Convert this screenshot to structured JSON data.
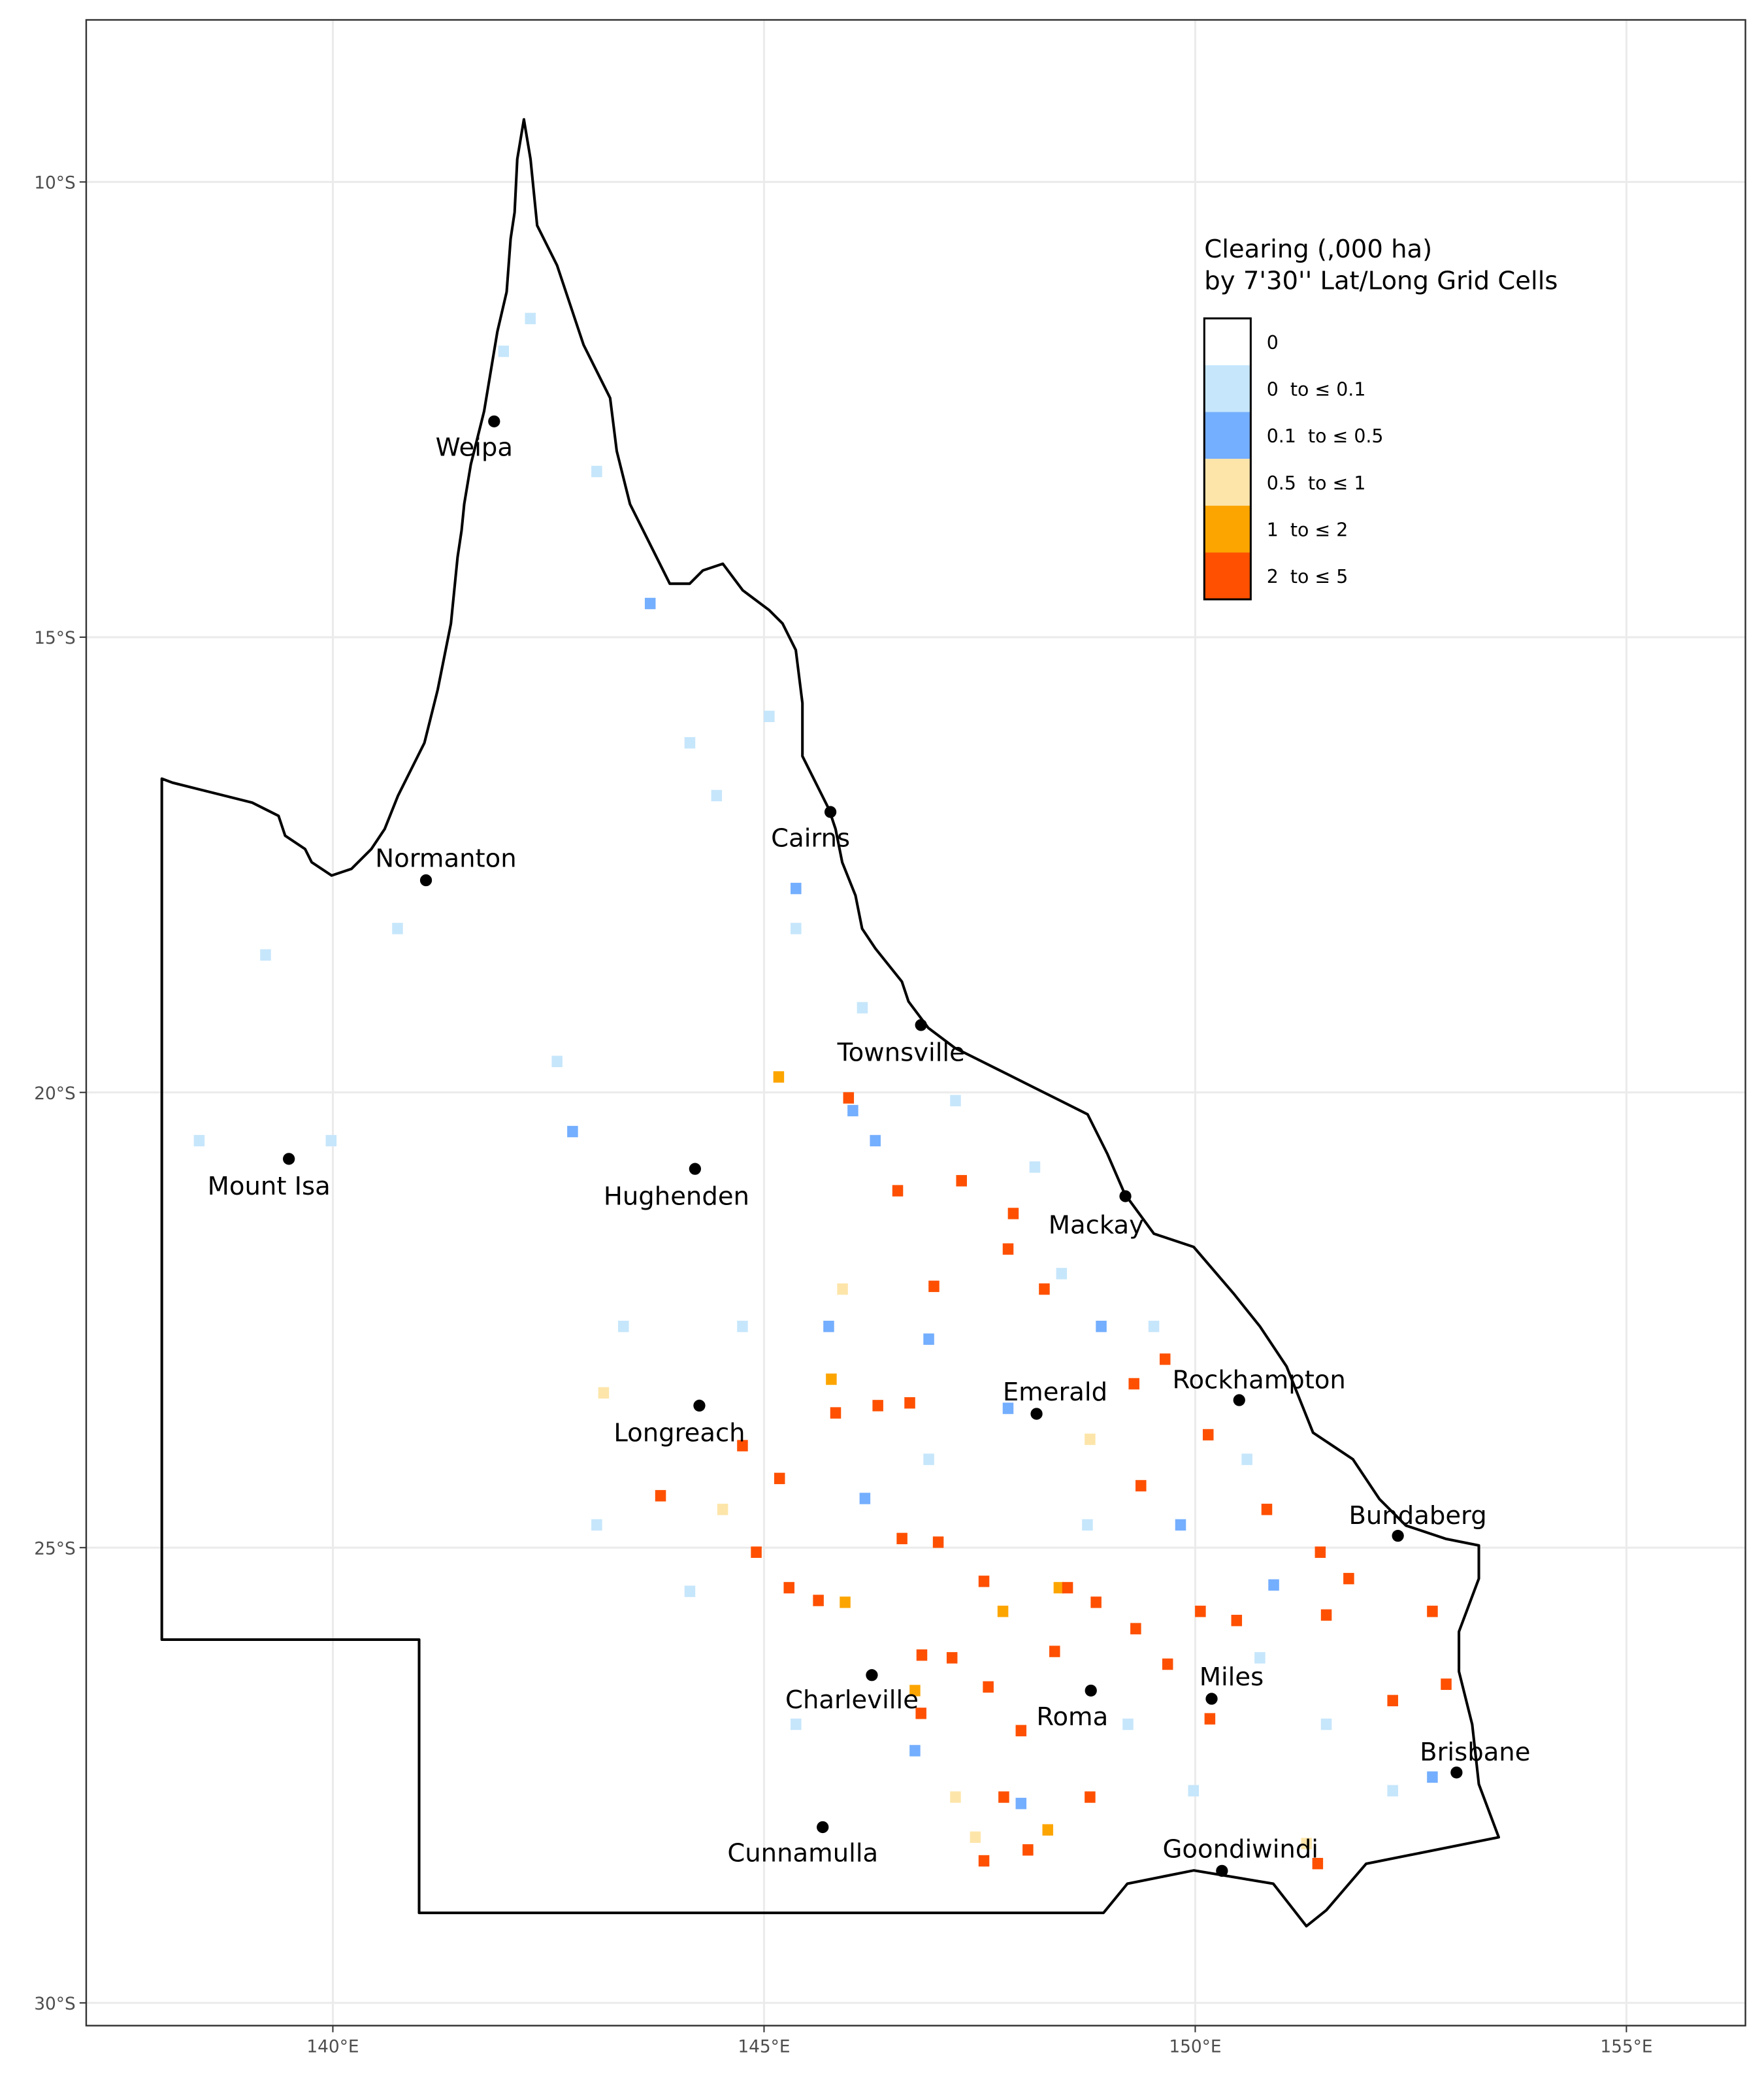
{
  "chart_data": {
    "type": "map",
    "xlim": [
      137.14,
      156.38
    ],
    "ylim": [
      -30.25,
      -8.22
    ],
    "xticks": [
      {
        "value": 140,
        "label": "140°E"
      },
      {
        "value": 145,
        "label": "145°E"
      },
      {
        "value": 150,
        "label": "150°E"
      },
      {
        "value": 155,
        "label": "155°E"
      }
    ],
    "yticks": [
      {
        "value": -10,
        "label": "10°S"
      },
      {
        "value": -15,
        "label": "15°S"
      },
      {
        "value": -20,
        "label": "20°S"
      },
      {
        "value": -25,
        "label": "25°S"
      },
      {
        "value": -30,
        "label": "30°S"
      }
    ],
    "grid": true,
    "legend": {
      "title": [
        "Clearing (,000 ha)",
        "by 7'30'' Lat/Long Grid Cells"
      ],
      "position": "top-right"
    },
    "classes": [
      {
        "label": "0",
        "color": "#ffffff",
        "cells": []
      },
      {
        "label": "0  to ≤ 0.1",
        "color": "#c6e6fb",
        "cells": [
          [
            141.98,
            -11.86
          ],
          [
            142.29,
            -11.5
          ],
          [
            143.06,
            -13.18
          ],
          [
            144.14,
            -16.16
          ],
          [
            144.45,
            -16.74
          ],
          [
            145.06,
            -15.87
          ],
          [
            145.37,
            -18.2
          ],
          [
            146.14,
            -19.07
          ],
          [
            147.22,
            -20.09
          ],
          [
            148.14,
            -20.82
          ],
          [
            148.45,
            -21.99
          ],
          [
            149.52,
            -22.57
          ],
          [
            150.6,
            -24.03
          ],
          [
            151.52,
            -26.94
          ],
          [
            149.98,
            -27.67
          ],
          [
            144.75,
            -22.57
          ],
          [
            143.37,
            -22.57
          ],
          [
            140.75,
            -18.2
          ],
          [
            139.22,
            -18.49
          ],
          [
            138.45,
            -20.53
          ],
          [
            139.98,
            -20.53
          ],
          [
            145.37,
            -26.94
          ],
          [
            144.14,
            -25.48
          ],
          [
            143.06,
            -24.75
          ],
          [
            146.91,
            -24.03
          ],
          [
            148.75,
            -24.75
          ],
          [
            150.75,
            -26.21
          ],
          [
            152.29,
            -27.67
          ],
          [
            149.22,
            -26.94
          ],
          [
            142.6,
            -19.66
          ]
        ]
      },
      {
        "label": "0.1  to ≤ 0.5",
        "color": "#74aefe",
        "cells": [
          [
            143.68,
            -14.63
          ],
          [
            142.78,
            -20.43
          ],
          [
            146.03,
            -20.2
          ],
          [
            146.29,
            -20.53
          ],
          [
            145.75,
            -22.57
          ],
          [
            146.91,
            -22.71
          ],
          [
            147.83,
            -23.47
          ],
          [
            148.91,
            -22.57
          ],
          [
            149.83,
            -24.75
          ],
          [
            150.91,
            -25.41
          ],
          [
            146.17,
            -24.46
          ],
          [
            146.75,
            -27.23
          ],
          [
            147.98,
            -27.81
          ],
          [
            145.37,
            -17.76
          ],
          [
            152.75,
            -27.52
          ]
        ]
      },
      {
        "label": "0.5  to ≤ 1",
        "color": "#fde5aa",
        "cells": [
          [
            143.14,
            -23.3
          ],
          [
            145.91,
            -22.16
          ],
          [
            148.78,
            -23.81
          ],
          [
            147.45,
            -28.18
          ],
          [
            147.22,
            -27.74
          ],
          [
            144.52,
            -24.58
          ],
          [
            151.29,
            -28.25
          ]
        ]
      },
      {
        "label": "1  to ≤ 2",
        "color": "#fca500",
        "cells": [
          [
            145.17,
            -19.83
          ],
          [
            145.78,
            -23.15
          ],
          [
            148.42,
            -25.44
          ],
          [
            147.77,
            -25.7
          ],
          [
            146.75,
            -26.57
          ],
          [
            148.29,
            -28.1
          ],
          [
            145.94,
            -25.6
          ]
        ]
      },
      {
        "label": "2  to ≤ 5",
        "color": "#fe5000",
        "cells": [
          [
            146.55,
            -21.08
          ],
          [
            147.29,
            -20.97
          ],
          [
            145.98,
            -20.06
          ],
          [
            147.89,
            -21.33
          ],
          [
            147.83,
            -21.72
          ],
          [
            148.25,
            -22.16
          ],
          [
            146.97,
            -22.13
          ],
          [
            143.8,
            -24.43
          ],
          [
            144.75,
            -23.88
          ],
          [
            145.18,
            -24.24
          ],
          [
            145.83,
            -23.52
          ],
          [
            146.32,
            -23.44
          ],
          [
            146.69,
            -23.41
          ],
          [
            149.29,
            -23.2
          ],
          [
            149.65,
            -22.93
          ],
          [
            150.15,
            -23.76
          ],
          [
            149.37,
            -24.32
          ],
          [
            150.83,
            -24.58
          ],
          [
            151.45,
            -25.05
          ],
          [
            151.78,
            -25.34
          ],
          [
            151.52,
            -25.74
          ],
          [
            150.06,
            -25.7
          ],
          [
            150.48,
            -25.8
          ],
          [
            149.31,
            -25.89
          ],
          [
            147.55,
            -25.37
          ],
          [
            147.02,
            -24.94
          ],
          [
            146.6,
            -24.9
          ],
          [
            144.91,
            -25.05
          ],
          [
            145.29,
            -25.44
          ],
          [
            145.63,
            -25.58
          ],
          [
            146.83,
            -26.18
          ],
          [
            147.18,
            -26.21
          ],
          [
            147.6,
            -26.53
          ],
          [
            148.37,
            -26.14
          ],
          [
            149.68,
            -26.28
          ],
          [
            150.17,
            -26.88
          ],
          [
            152.29,
            -26.68
          ],
          [
            152.75,
            -25.7
          ],
          [
            152.91,
            -26.5
          ],
          [
            151.42,
            -28.47
          ],
          [
            147.55,
            -28.44
          ],
          [
            148.06,
            -28.32
          ],
          [
            148.78,
            -27.74
          ],
          [
            147.78,
            -27.74
          ],
          [
            146.82,
            -26.82
          ],
          [
            147.98,
            -27.01
          ],
          [
            148.52,
            -25.44
          ],
          [
            148.85,
            -25.6
          ]
        ]
      }
    ],
    "cities": [
      {
        "name": "Weipa",
        "lon": 141.87,
        "lat": -12.63
      },
      {
        "name": "Normanton",
        "lon": 141.08,
        "lat": -17.67
      },
      {
        "name": "Cairns",
        "lon": 145.77,
        "lat": -16.92
      },
      {
        "name": "Townsville",
        "lon": 146.82,
        "lat": -19.26
      },
      {
        "name": "Mount Isa",
        "lon": 139.49,
        "lat": -20.73
      },
      {
        "name": "Hughenden",
        "lon": 144.2,
        "lat": -20.84
      },
      {
        "name": "Mackay",
        "lon": 149.19,
        "lat": -21.14
      },
      {
        "name": "Rockhampton",
        "lon": 150.51,
        "lat": -23.38
      },
      {
        "name": "Emerald",
        "lon": 148.16,
        "lat": -23.53
      },
      {
        "name": "Longreach",
        "lon": 144.25,
        "lat": -23.44
      },
      {
        "name": "Bundaberg",
        "lon": 152.35,
        "lat": -24.87
      },
      {
        "name": "Miles",
        "lon": 150.19,
        "lat": -26.66
      },
      {
        "name": "Charleville",
        "lon": 146.25,
        "lat": -26.4
      },
      {
        "name": "Roma",
        "lon": 148.79,
        "lat": -26.57
      },
      {
        "name": "Brisbane",
        "lon": 153.03,
        "lat": -27.47
      },
      {
        "name": "Cunnamulla",
        "lon": 145.68,
        "lat": -28.07
      },
      {
        "name": "Goondiwindi",
        "lon": 150.31,
        "lat": -28.55
      }
    ]
  }
}
